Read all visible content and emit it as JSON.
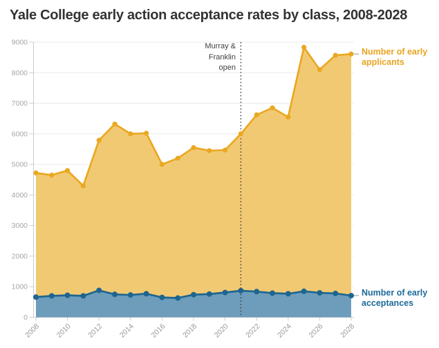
{
  "title": "Yale College early action acceptance rates by class, 2008-2028",
  "annotation": {
    "text": "Murray &\nFranklin\nopen"
  },
  "legend": {
    "applicants": "Number of early applicants",
    "acceptances": "Number of early acceptances"
  },
  "colors": {
    "applicants_line": "#EAA821",
    "applicants_fill": "#F2C973",
    "acceptances_line": "#1E6590",
    "acceptances_fill": "#6D9DBB",
    "applicants_label_text": "#E8A41F",
    "acceptances_label_text": "#1D6A9A",
    "grid": "#EBEBEB",
    "axis": "#CCCCCC",
    "tick_label": "#A6A6A6",
    "annotation_line": "#3A3A3A",
    "legend_dash": "#B5B5B5",
    "title_text": "#333333"
  },
  "chart_data": {
    "type": "area",
    "title": "Yale College early action acceptance rates by class, 2008-2028",
    "xlabel": "",
    "ylabel": "",
    "x": [
      2008,
      2009,
      2010,
      2011,
      2012,
      2013,
      2014,
      2015,
      2016,
      2017,
      2018,
      2019,
      2020,
      2021,
      2022,
      2023,
      2024,
      2025,
      2026,
      2027,
      2028
    ],
    "series": [
      {
        "name": "Number of early applicants",
        "values": [
          4720,
          4650,
          4800,
          4300,
          5790,
          6320,
          6000,
          6020,
          5000,
          5200,
          5550,
          5450,
          5470,
          6000,
          6620,
          6850,
          6550,
          8830,
          8100,
          8570,
          8610
        ]
      },
      {
        "name": "Number of early acceptances",
        "values": [
          660,
          700,
          720,
          700,
          880,
          750,
          730,
          770,
          650,
          630,
          740,
          760,
          810,
          870,
          840,
          790,
          770,
          850,
          800,
          780,
          710
        ]
      }
    ],
    "x_ticks": [
      2008,
      2010,
      2012,
      2014,
      2016,
      2018,
      2020,
      2022,
      2024,
      2026,
      2028
    ],
    "y_ticks": [
      0,
      1000,
      2000,
      3000,
      4000,
      5000,
      6000,
      7000,
      8000,
      9000
    ],
    "xlim": [
      2008,
      2028
    ],
    "ylim": [
      0,
      9000
    ],
    "grid": true,
    "legend_position": "right",
    "annotation": {
      "label": "Murray & Franklin open",
      "x": 2021
    }
  }
}
